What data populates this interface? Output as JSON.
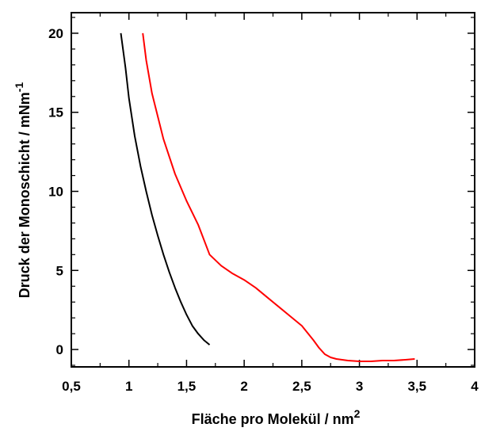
{
  "chart_data": {
    "type": "line",
    "xlabel": "Fläche pro Molekül / nm",
    "xlabel_sup": "2",
    "ylabel": "Druck der Monoschicht / mNm",
    "ylabel_sup": "-1",
    "xlim": [
      0.5,
      4.0
    ],
    "ylim": [
      -1.1,
      21.3
    ],
    "x_ticks": [
      0.5,
      1,
      1.5,
      2,
      2.5,
      3,
      3.5,
      4
    ],
    "x_tick_labels": [
      "0,5",
      "1",
      "1,5",
      "2",
      "2,5",
      "3",
      "3,5",
      "4"
    ],
    "y_ticks": [
      0,
      5,
      10,
      15,
      20
    ],
    "y_tick_labels": [
      "0",
      "5",
      "10",
      "15",
      "20"
    ],
    "grid": false,
    "series": [
      {
        "color": "#000000",
        "x": [
          0.93,
          0.97,
          1.0,
          1.05,
          1.1,
          1.15,
          1.2,
          1.25,
          1.3,
          1.35,
          1.4,
          1.45,
          1.5,
          1.55,
          1.6,
          1.65,
          1.7
        ],
        "y": [
          20.0,
          17.8,
          15.9,
          13.5,
          11.6,
          10.0,
          8.5,
          7.2,
          6.0,
          4.9,
          3.9,
          3.0,
          2.2,
          1.5,
          1.0,
          0.6,
          0.3
        ]
      },
      {
        "color": "#ff0000",
        "x": [
          1.12,
          1.15,
          1.2,
          1.3,
          1.4,
          1.5,
          1.6,
          1.7,
          1.8,
          1.9,
          2.0,
          2.1,
          2.2,
          2.3,
          2.4,
          2.5,
          2.6,
          2.65,
          2.7,
          2.75,
          2.8,
          2.9,
          3.0,
          3.1,
          3.2,
          3.3,
          3.4,
          3.48
        ],
        "y": [
          20.0,
          18.3,
          16.2,
          13.3,
          11.1,
          9.4,
          7.9,
          6.0,
          5.3,
          4.8,
          4.4,
          3.9,
          3.3,
          2.7,
          2.1,
          1.5,
          0.6,
          0.1,
          -0.3,
          -0.5,
          -0.6,
          -0.7,
          -0.75,
          -0.75,
          -0.7,
          -0.7,
          -0.65,
          -0.6
        ]
      }
    ]
  }
}
